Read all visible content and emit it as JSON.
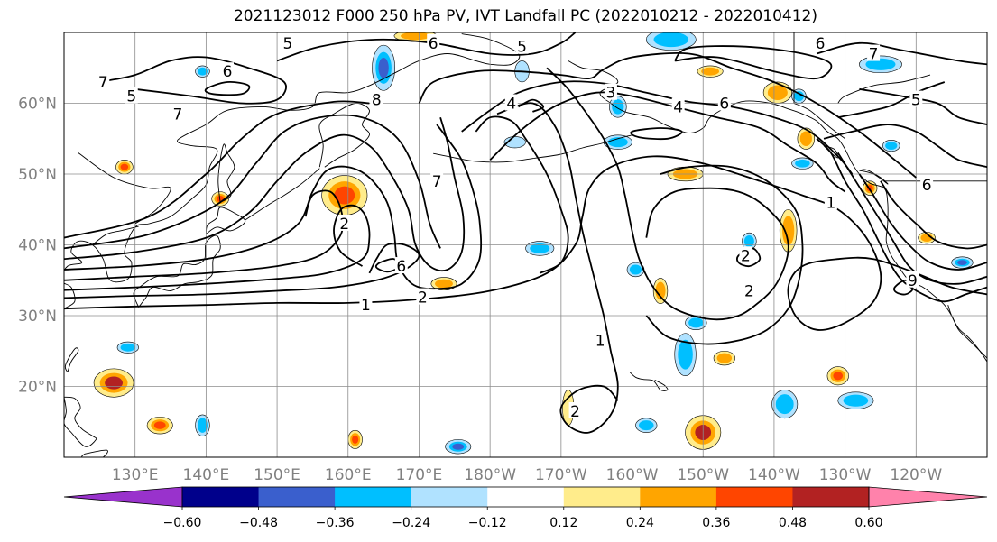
{
  "title": "2021123012 F000 250 hPa PV, IVT Landfall PC (2022010212 - 2022010412)",
  "map": {
    "projection": "equirectangular",
    "lon_range": [
      120,
      250
    ],
    "lat_range": [
      10,
      70
    ],
    "lat_ticks": [
      {
        "lat": 20,
        "label": "20°N"
      },
      {
        "lat": 30,
        "label": "30°N"
      },
      {
        "lat": 40,
        "label": "40°N"
      },
      {
        "lat": 50,
        "label": "50°N"
      },
      {
        "lat": 60,
        "label": "60°N"
      }
    ],
    "lon_ticks": [
      {
        "lon": 130,
        "label": "130°E"
      },
      {
        "lon": 140,
        "label": "140°E"
      },
      {
        "lon": 150,
        "label": "150°E"
      },
      {
        "lon": 160,
        "label": "160°E"
      },
      {
        "lon": 170,
        "label": "170°E"
      },
      {
        "lon": 180,
        "label": "180°W"
      },
      {
        "lon": 190,
        "label": "170°W"
      },
      {
        "lon": 200,
        "label": "160°W"
      },
      {
        "lon": 210,
        "label": "150°W"
      },
      {
        "lon": 220,
        "label": "140°W"
      },
      {
        "lon": 230,
        "label": "130°W"
      },
      {
        "lon": 240,
        "label": "120°W"
      }
    ],
    "grid": true,
    "contour_labels": [
      {
        "text": "1",
        "lon": 162.5,
        "lat": 31.5
      },
      {
        "text": "2",
        "lon": 170.5,
        "lat": 32.6
      },
      {
        "text": "1",
        "lon": 195.5,
        "lat": 26.5
      },
      {
        "text": "2",
        "lon": 192.0,
        "lat": 16.5
      },
      {
        "text": "2",
        "lon": 216.0,
        "lat": 38.5
      },
      {
        "text": "2",
        "lon": 216.5,
        "lat": 33.5
      },
      {
        "text": "6",
        "lon": 167.5,
        "lat": 37.0
      },
      {
        "text": "2",
        "lon": 159.5,
        "lat": 43.0
      },
      {
        "text": "7",
        "lon": 125.5,
        "lat": 63.0
      },
      {
        "text": "5",
        "lon": 129.5,
        "lat": 61.0
      },
      {
        "text": "6",
        "lon": 143.0,
        "lat": 64.5
      },
      {
        "text": "7",
        "lon": 136.0,
        "lat": 58.5
      },
      {
        "text": "5",
        "lon": 151.5,
        "lat": 68.5
      },
      {
        "text": "8",
        "lon": 164.0,
        "lat": 60.5
      },
      {
        "text": "6",
        "lon": 172.0,
        "lat": 68.5
      },
      {
        "text": "5",
        "lon": 184.5,
        "lat": 68.0
      },
      {
        "text": "4",
        "lon": 183.0,
        "lat": 60.0
      },
      {
        "text": "3",
        "lon": 197.0,
        "lat": 61.5
      },
      {
        "text": "4",
        "lon": 206.5,
        "lat": 59.5
      },
      {
        "text": "6",
        "lon": 213.0,
        "lat": 60.0
      },
      {
        "text": "6",
        "lon": 226.5,
        "lat": 68.5
      },
      {
        "text": "7",
        "lon": 234.0,
        "lat": 67.0
      },
      {
        "text": "5",
        "lon": 240.0,
        "lat": 60.5
      },
      {
        "text": "7",
        "lon": 172.5,
        "lat": 49.0
      },
      {
        "text": "1",
        "lon": 228.0,
        "lat": 46.0
      },
      {
        "text": "9",
        "lon": 239.5,
        "lat": 35.0
      },
      {
        "text": "6",
        "lon": 241.5,
        "lat": 48.5
      }
    ],
    "shaded_anomalies": [
      {
        "lon": 159.5,
        "lat": 47.0,
        "rx": 3.2,
        "ry": 2.8,
        "value": 0.45
      },
      {
        "lon": 127.0,
        "lat": 20.5,
        "rx": 2.8,
        "ry": 2.0,
        "value": 0.5
      },
      {
        "lon": 210.0,
        "lat": 13.5,
        "rx": 2.5,
        "ry": 2.4,
        "value": 0.5
      },
      {
        "lon": 133.5,
        "lat": 14.5,
        "rx": 1.8,
        "ry": 1.2,
        "value": 0.4
      },
      {
        "lon": 142.0,
        "lat": 46.5,
        "rx": 1.2,
        "ry": 1.0,
        "value": 0.4
      },
      {
        "lon": 128.5,
        "lat": 51.0,
        "rx": 1.2,
        "ry": 1.0,
        "value": 0.4
      },
      {
        "lon": 207.5,
        "lat": 50.0,
        "rx": 2.5,
        "ry": 1.0,
        "value": 0.3
      },
      {
        "lon": 222.0,
        "lat": 42.0,
        "rx": 1.2,
        "ry": 3.0,
        "value": 0.35
      },
      {
        "lon": 220.5,
        "lat": 61.5,
        "rx": 2.0,
        "ry": 1.5,
        "value": 0.35
      },
      {
        "lon": 229.0,
        "lat": 21.5,
        "rx": 1.5,
        "ry": 1.3,
        "value": 0.45
      },
      {
        "lon": 173.5,
        "lat": 34.5,
        "rx": 1.8,
        "ry": 0.9,
        "value": 0.3
      },
      {
        "lon": 204.0,
        "lat": 33.5,
        "rx": 1.0,
        "ry": 1.8,
        "value": 0.3
      },
      {
        "lon": 213.0,
        "lat": 24.0,
        "rx": 1.5,
        "ry": 1.0,
        "value": 0.3
      },
      {
        "lon": 161.0,
        "lat": 12.5,
        "rx": 1.0,
        "ry": 1.3,
        "value": 0.4
      },
      {
        "lon": 211.0,
        "lat": 64.5,
        "rx": 1.8,
        "ry": 0.8,
        "value": 0.3
      },
      {
        "lon": 169.5,
        "lat": 69.5,
        "rx": 3.0,
        "ry": 0.8,
        "value": 0.3
      },
      {
        "lon": 224.5,
        "lat": 55.0,
        "rx": 1.2,
        "ry": 1.5,
        "value": 0.3
      },
      {
        "lon": 233.5,
        "lat": 48.0,
        "rx": 1.0,
        "ry": 1.0,
        "value": 0.4
      },
      {
        "lon": 241.5,
        "lat": 41.0,
        "rx": 1.2,
        "ry": 0.8,
        "value": 0.3
      },
      {
        "lon": 191.0,
        "lat": 17.0,
        "rx": 0.8,
        "ry": 2.5,
        "value": 0.2
      },
      {
        "lon": 165.0,
        "lat": 65.0,
        "rx": 1.6,
        "ry": 3.2,
        "value": -0.4
      },
      {
        "lon": 205.5,
        "lat": 69.0,
        "rx": 3.5,
        "ry": 1.5,
        "value": -0.36
      },
      {
        "lon": 235.0,
        "lat": 65.5,
        "rx": 3.0,
        "ry": 1.2,
        "value": -0.3
      },
      {
        "lon": 221.5,
        "lat": 17.5,
        "rx": 1.8,
        "ry": 2.0,
        "value": -0.3
      },
      {
        "lon": 207.5,
        "lat": 24.5,
        "rx": 1.5,
        "ry": 3.0,
        "value": -0.3
      },
      {
        "lon": 231.5,
        "lat": 18.0,
        "rx": 2.5,
        "ry": 1.2,
        "value": -0.3
      },
      {
        "lon": 198.0,
        "lat": 54.5,
        "rx": 2.0,
        "ry": 1.0,
        "value": -0.36
      },
      {
        "lon": 187.0,
        "lat": 39.5,
        "rx": 2.0,
        "ry": 1.0,
        "value": -0.3
      },
      {
        "lon": 198.0,
        "lat": 59.5,
        "rx": 1.2,
        "ry": 1.5,
        "value": -0.3
      },
      {
        "lon": 129.0,
        "lat": 25.5,
        "rx": 1.5,
        "ry": 0.8,
        "value": -0.3
      },
      {
        "lon": 139.5,
        "lat": 14.5,
        "rx": 1.0,
        "ry": 1.5,
        "value": -0.3
      },
      {
        "lon": 175.5,
        "lat": 11.5,
        "rx": 1.8,
        "ry": 1.0,
        "value": -0.4
      },
      {
        "lon": 202.0,
        "lat": 14.5,
        "rx": 1.5,
        "ry": 1.0,
        "value": -0.3
      },
      {
        "lon": 209.0,
        "lat": 29.0,
        "rx": 1.5,
        "ry": 1.0,
        "value": -0.3
      },
      {
        "lon": 223.5,
        "lat": 61.0,
        "rx": 1.0,
        "ry": 1.0,
        "value": -0.3
      },
      {
        "lon": 183.5,
        "lat": 54.5,
        "rx": 1.5,
        "ry": 0.8,
        "value": -0.24
      },
      {
        "lon": 139.5,
        "lat": 64.5,
        "rx": 1.0,
        "ry": 0.8,
        "value": -0.3
      },
      {
        "lon": 200.5,
        "lat": 36.5,
        "rx": 1.2,
        "ry": 1.0,
        "value": -0.3
      },
      {
        "lon": 236.5,
        "lat": 54.0,
        "rx": 1.2,
        "ry": 0.8,
        "value": -0.3
      },
      {
        "lon": 224.0,
        "lat": 51.5,
        "rx": 1.5,
        "ry": 0.8,
        "value": -0.3
      },
      {
        "lon": 216.5,
        "lat": 40.5,
        "rx": 1.0,
        "ry": 1.2,
        "value": -0.3
      },
      {
        "lon": 246.5,
        "lat": 37.5,
        "rx": 1.5,
        "ry": 0.8,
        "value": -0.4
      },
      {
        "lon": 184.5,
        "lat": 64.5,
        "rx": 1.0,
        "ry": 1.5,
        "value": -0.24
      }
    ]
  },
  "colorbar": {
    "ticks": [
      "−0.60",
      "−0.48",
      "−0.36",
      "−0.24",
      "−0.12",
      "0.12",
      "0.24",
      "0.36",
      "0.48",
      "0.60"
    ],
    "colors": [
      "#9932cc",
      "#00008b",
      "#3a5fcd",
      "#00bfff",
      "#b0e2ff",
      "#ffffff",
      "#ffec8b",
      "#ffa500",
      "#ff4500",
      "#b22222",
      "#ff82ab"
    ]
  }
}
